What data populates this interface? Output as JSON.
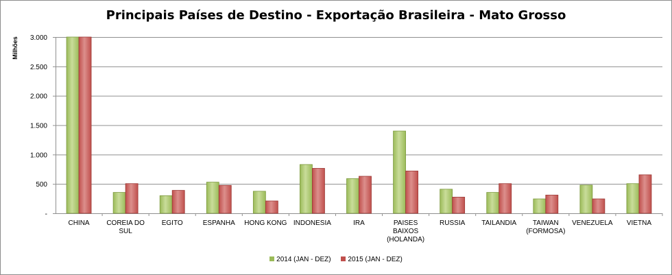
{
  "chart_data": {
    "type": "bar",
    "title": "Principais Países de Destino - Exportação Brasileira - Mato Grosso",
    "ylabel": "Milhões",
    "xlabel": "",
    "ylim": [
      0,
      3000
    ],
    "yticks": [
      "-",
      "500",
      "1.000",
      "1.500",
      "2.000",
      "2.500",
      "3.000"
    ],
    "grid": true,
    "legend_position": "bottom",
    "categories": [
      [
        "CHINA"
      ],
      [
        "COREIA DO",
        "SUL"
      ],
      [
        "EGITO"
      ],
      [
        "ESPANHA"
      ],
      [
        "HONG KONG"
      ],
      [
        "INDONESIA"
      ],
      [
        "IRA"
      ],
      [
        "PAISES",
        "BAIXOS",
        "(HOLANDA)"
      ],
      [
        "RUSSIA"
      ],
      [
        "TAILANDIA"
      ],
      [
        "TAIWAN",
        "(FORMOSA)"
      ],
      [
        "VENEZUELA"
      ],
      [
        "VIETNA"
      ]
    ],
    "series": [
      {
        "name": "2014 (JAN - DEZ)",
        "color": "#9bbb59",
        "values": [
          3000,
          355,
          300,
          530,
          375,
          830,
          590,
          1400,
          410,
          355,
          245,
          480,
          505
        ]
      },
      {
        "name": "2015 (JAN - DEZ)",
        "color": "#c0504d",
        "values": [
          3000,
          505,
          390,
          475,
          210,
          765,
          630,
          720,
          275,
          505,
          310,
          245,
          655
        ]
      }
    ]
  }
}
